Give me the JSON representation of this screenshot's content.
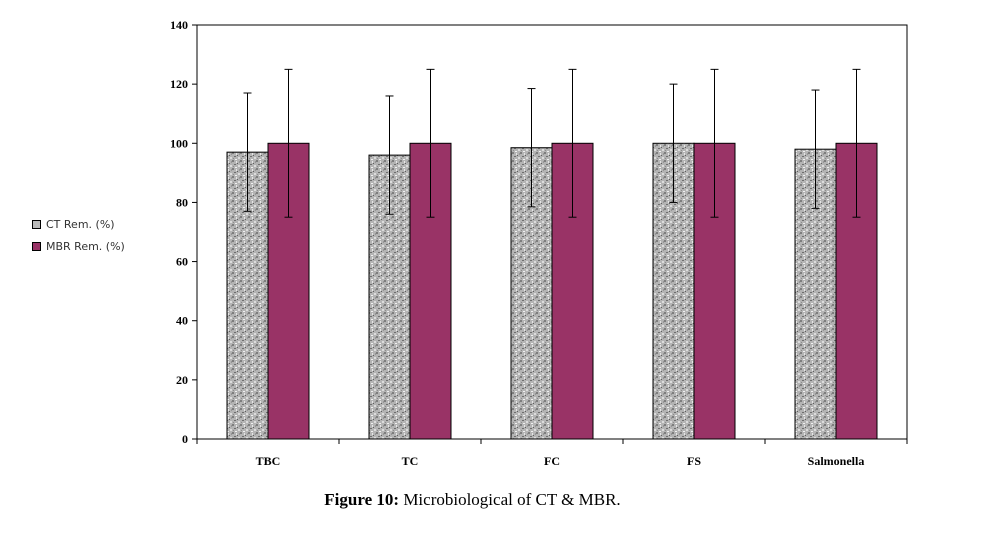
{
  "chart_data": {
    "type": "bar",
    "categories": [
      "TBC",
      "TC",
      "FC",
      "FS",
      "Salmonella"
    ],
    "series": [
      {
        "name": "CT Rem. (%)",
        "values": [
          97,
          96,
          98.5,
          100,
          98
        ],
        "error_low": [
          77,
          76,
          78.5,
          80,
          78
        ],
        "error_high": [
          117,
          116,
          118.5,
          120,
          118
        ],
        "color": "#b9b9b9",
        "pattern": "speckle"
      },
      {
        "name": "MBR Rem. (%)",
        "values": [
          100,
          100,
          100,
          100,
          100
        ],
        "error_low": [
          75,
          75,
          75,
          75,
          75
        ],
        "error_high": [
          125,
          125,
          125,
          125,
          125
        ],
        "color": "#993366"
      }
    ],
    "ylim": [
      0,
      140
    ],
    "yticks": [
      0,
      20,
      40,
      60,
      80,
      100,
      120,
      140
    ],
    "grid": false,
    "legend_position": "left"
  },
  "caption": {
    "label": "Figure 10:",
    "text": " Microbiological of CT & MBR."
  }
}
